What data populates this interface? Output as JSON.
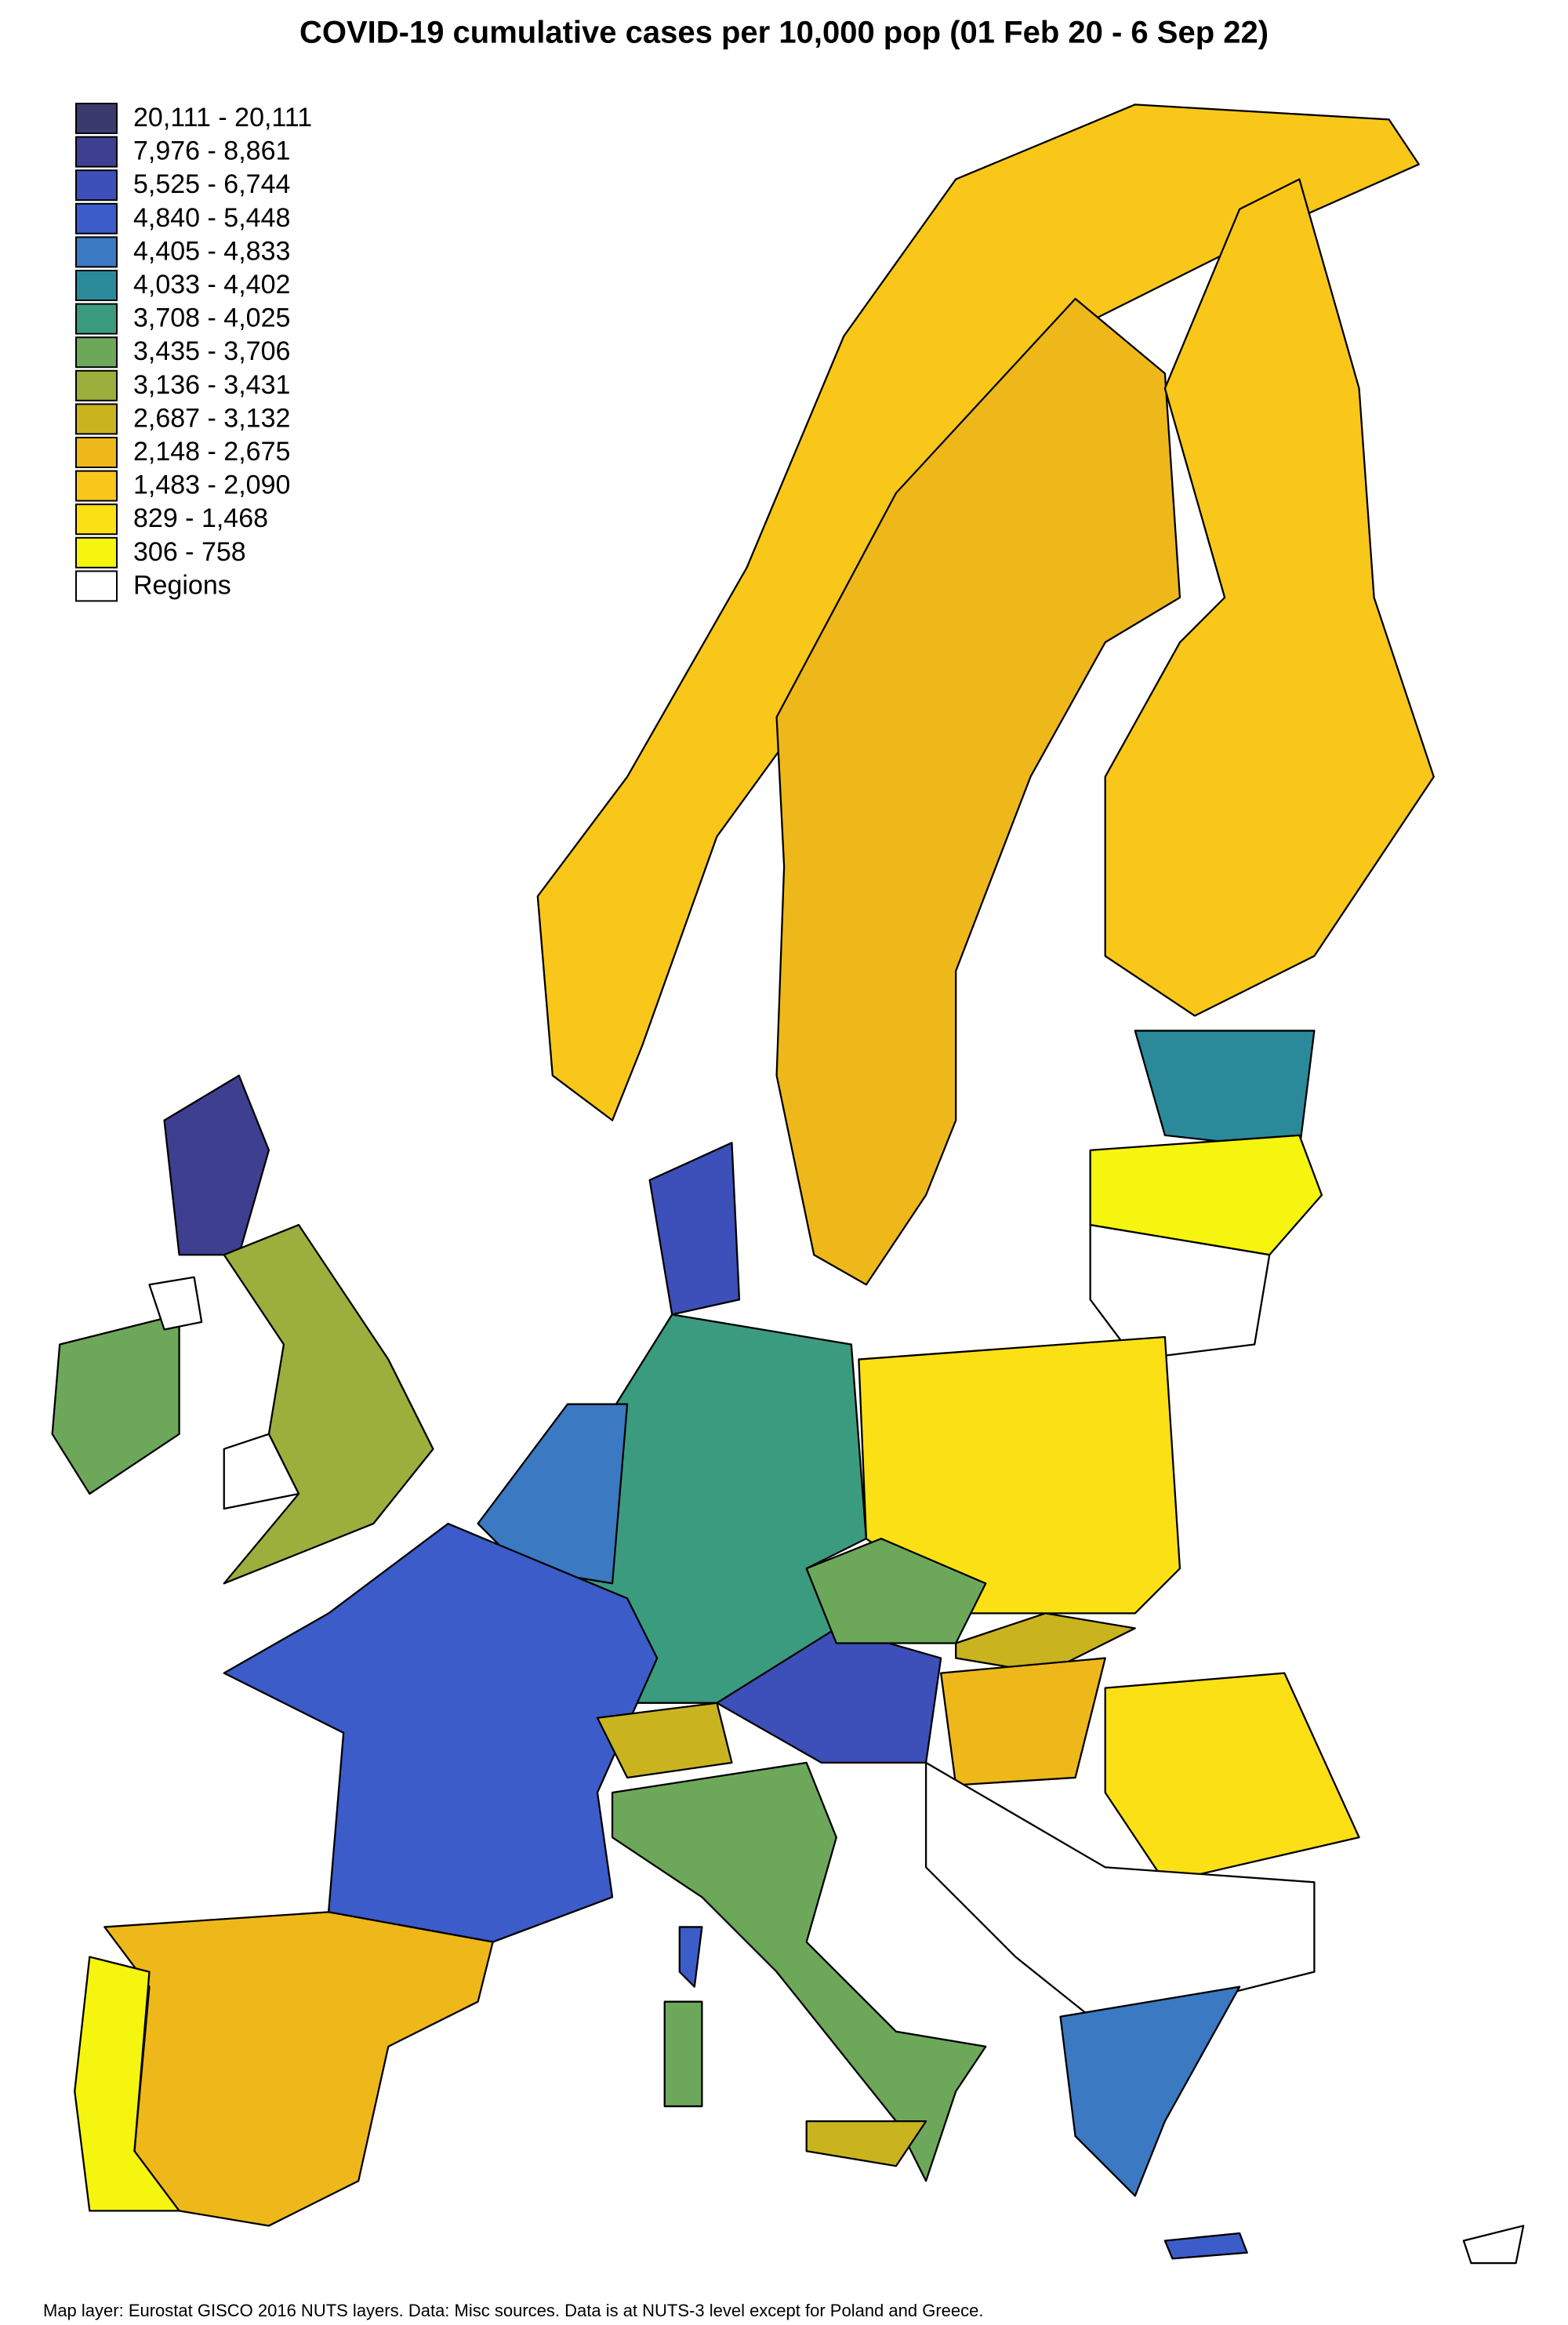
{
  "title": "COVID-19 cumulative cases per 10,000 pop (01 Feb 20 -  6 Sep 22)",
  "legend": {
    "items": [
      {
        "label": "20,111 - 20,111",
        "color": "#3b3a6e"
      },
      {
        "label": "7,976 - 8,861",
        "color": "#3f3f91"
      },
      {
        "label": "5,525 - 6,744",
        "color": "#3d4fb8"
      },
      {
        "label": "4,840 - 5,448",
        "color": "#3b5cc9"
      },
      {
        "label": "4,405 - 4,833",
        "color": "#3b79c2"
      },
      {
        "label": "4,033 - 4,402",
        "color": "#2a8a9a"
      },
      {
        "label": "3,708 - 4,025",
        "color": "#3b9b7e"
      },
      {
        "label": "3,435 - 3,706",
        "color": "#6da85a"
      },
      {
        "label": "3,136 - 3,431",
        "color": "#9caf3c"
      },
      {
        "label": "2,687 - 3,132",
        "color": "#c9b420"
      },
      {
        "label": "2,148 - 2,675",
        "color": "#eeb81a"
      },
      {
        "label": "1,483 - 2,090",
        "color": "#f8c71a"
      },
      {
        "label": "829 - 1,468",
        "color": "#fbe016"
      },
      {
        "label": "306 - 758",
        "color": "#f5f50f"
      },
      {
        "label": "Regions",
        "color": "#ffffff"
      }
    ]
  },
  "footnote": "Map layer: Eurostat GISCO 2016 NUTS layers. Data: Misc sources. Data is at NUTS-3 level except for Poland and Greece."
}
